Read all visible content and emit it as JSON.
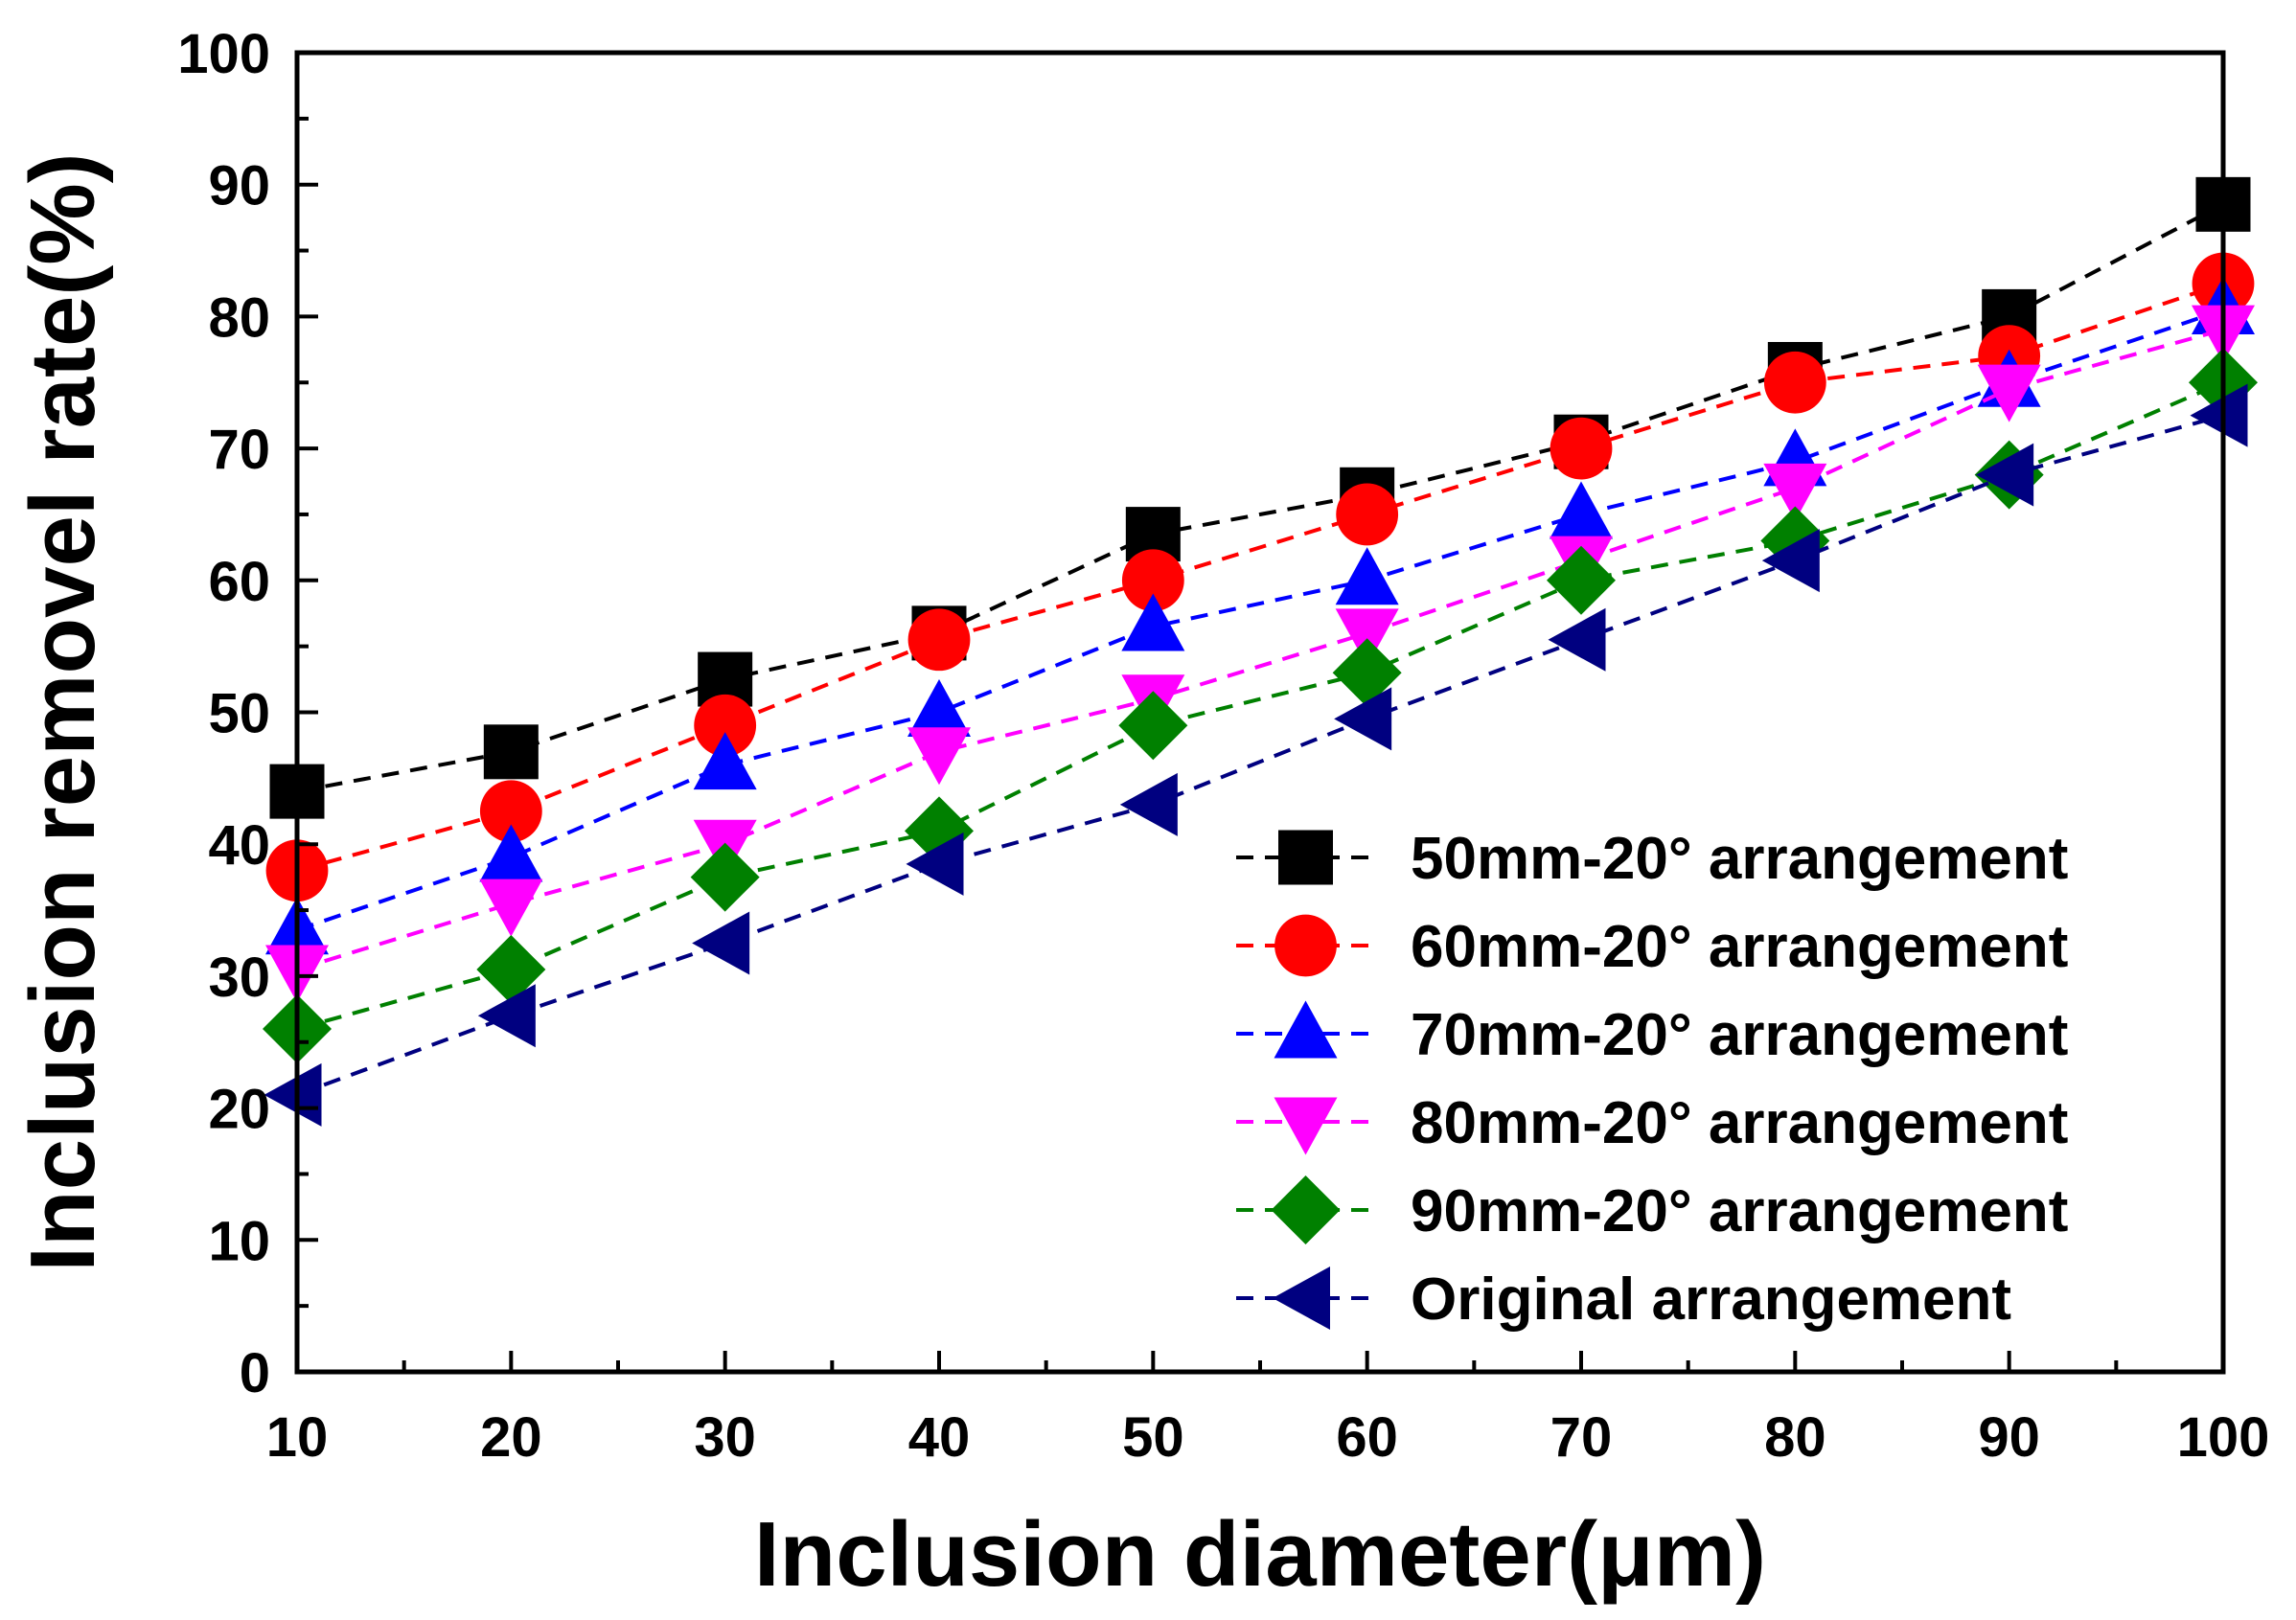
{
  "chart_data": {
    "type": "line",
    "title": "",
    "xlabel": "Inclusion diameter(μm)",
    "ylabel": "Inclusion removel rate(%)",
    "x": [
      10,
      20,
      30,
      40,
      50,
      60,
      70,
      80,
      90,
      100
    ],
    "xlim": [
      10,
      100
    ],
    "ylim": [
      0,
      100
    ],
    "xticks": [
      "10",
      "20",
      "30",
      "40",
      "50",
      "60",
      "70",
      "80",
      "90",
      "100"
    ],
    "yticks": [
      "0",
      "10",
      "20",
      "30",
      "40",
      "50",
      "60",
      "70",
      "80",
      "90",
      "100"
    ],
    "grid": false,
    "legend_position": "bottom-right",
    "series": [
      {
        "name": "50mm-20° arrangement",
        "marker": "square",
        "color": "#000000",
        "values": [
          44,
          47,
          52.5,
          56,
          63.5,
          66.5,
          70.5,
          76,
          80,
          88.5
        ]
      },
      {
        "name": "60mm-20° arrangement",
        "marker": "circle",
        "color": "#ff0000",
        "values": [
          38,
          42.5,
          49,
          55.5,
          60,
          65,
          70,
          75,
          77,
          82.5
        ]
      },
      {
        "name": "70mm-20° arrangement",
        "marker": "triangle-up",
        "color": "#0000ff",
        "values": [
          33.5,
          39,
          46,
          50,
          56.5,
          60,
          65,
          69,
          75,
          80.5
        ]
      },
      {
        "name": "80mm-20° arrangement",
        "marker": "triangle-down",
        "color": "#ff00ff",
        "values": [
          30.5,
          35.5,
          40,
          47,
          51,
          56,
          61.5,
          67,
          74.5,
          79
        ]
      },
      {
        "name": "90mm-20° arrangement",
        "marker": "diamond",
        "color": "#008000",
        "values": [
          26,
          30.5,
          37.5,
          41,
          49,
          53,
          60,
          63,
          68,
          75
        ]
      },
      {
        "name": "Original arrangement",
        "marker": "triangle-left",
        "color": "#000080",
        "values": [
          21,
          27,
          32.5,
          38.5,
          43,
          49.5,
          55.5,
          61.5,
          68,
          72.5
        ]
      }
    ]
  }
}
